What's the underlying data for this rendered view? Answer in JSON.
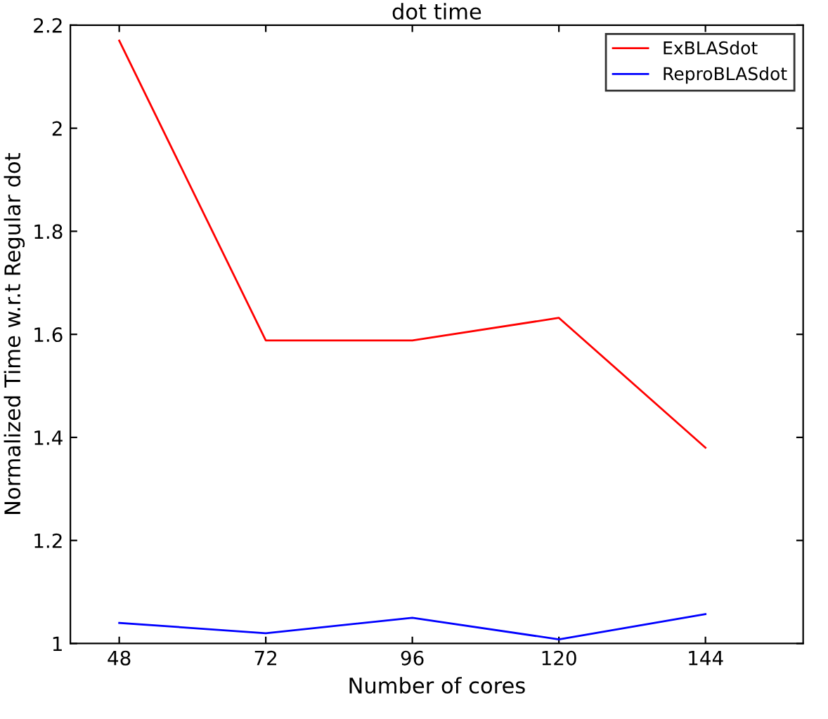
{
  "chart_data": {
    "type": "line",
    "title": "dot time",
    "xlabel": "Number of cores",
    "ylabel": "Normalized Time w.r.t Regular dot",
    "x": [
      48,
      72,
      96,
      120,
      144
    ],
    "series": [
      {
        "name": "ExBLASdot",
        "color": "#ff0000",
        "values": [
          2.17,
          1.588,
          1.588,
          1.632,
          1.38
        ]
      },
      {
        "name": "ReproBLASdot",
        "color": "#0000ff",
        "values": [
          1.04,
          1.02,
          1.05,
          1.008,
          1.057
        ]
      }
    ],
    "xlim": [
      40,
      160
    ],
    "xticks": [
      48,
      72,
      96,
      120,
      144
    ],
    "ylim": [
      1,
      2.2
    ],
    "yticks": [
      1,
      1.2,
      1.4,
      1.6,
      1.8,
      2,
      2.2
    ],
    "grid": false,
    "legend": "top right",
    "marker": "none",
    "line_style": "solid"
  }
}
